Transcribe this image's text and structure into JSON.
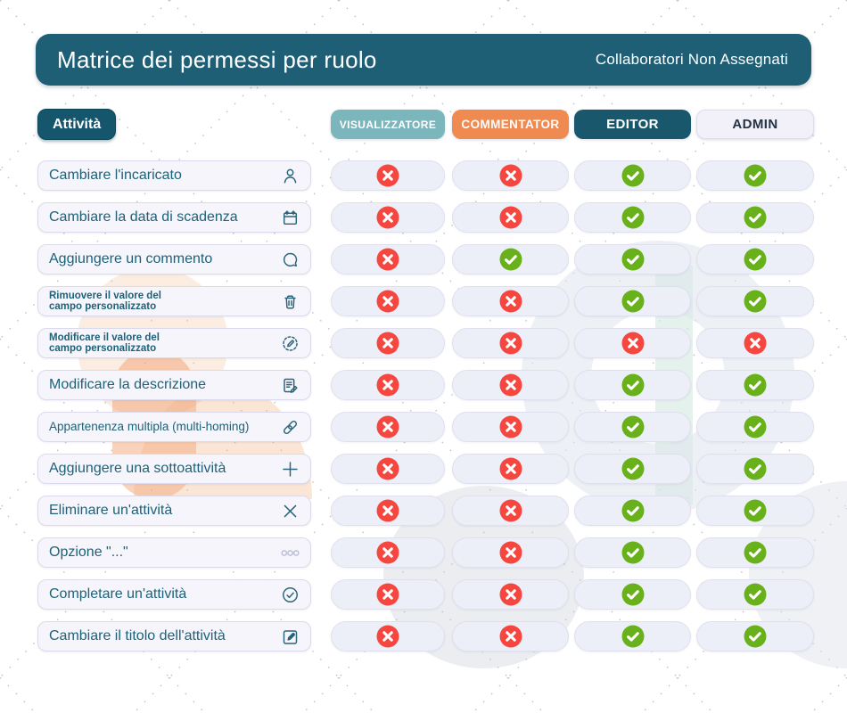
{
  "header": {
    "title": "Matrice dei permessi per ruolo",
    "subtitle": "Collaboratori Non Assegnati"
  },
  "columns": {
    "activity_label": "Attività",
    "roles": [
      {
        "label": "VISUALIZZATORE",
        "bg": "#7ab6bb",
        "fg": "#ffffff",
        "font": 12
      },
      {
        "label": "COMMENTATOR",
        "bg": "#ef8a50",
        "fg": "#ffffff",
        "font": 13.5
      },
      {
        "label": "EDITOR",
        "bg": "#19576d",
        "fg": "#ffffff",
        "font": 15
      },
      {
        "label": "ADMIN",
        "bg": "#f2f1fa",
        "fg": "#253244",
        "font": 15
      }
    ]
  },
  "rows": [
    {
      "label": "Cambiare l'incaricato",
      "icon": "person-icon",
      "size": "lg",
      "perms": [
        "deny",
        "deny",
        "allow",
        "allow"
      ]
    },
    {
      "label": "Cambiare la data di scadenza",
      "icon": "calendar-icon",
      "size": "lg",
      "perms": [
        "deny",
        "deny",
        "allow",
        "allow"
      ]
    },
    {
      "label": "Aggiungere un commento",
      "icon": "comment-icon",
      "size": "lg",
      "perms": [
        "deny",
        "allow",
        "allow",
        "allow"
      ]
    },
    {
      "label": "Rimuovere il valore del\ncampo personalizzato",
      "icon": "trash-icon",
      "size": "sm",
      "perms": [
        "deny",
        "deny",
        "allow",
        "allow"
      ]
    },
    {
      "label": "Modificare il valore del\ncampo personalizzato",
      "icon": "edit-field-icon",
      "size": "sm",
      "perms": [
        "deny",
        "deny",
        "deny",
        "deny"
      ]
    },
    {
      "label": "Modificare la descrizione",
      "icon": "description-icon",
      "size": "lg",
      "perms": [
        "deny",
        "deny",
        "allow",
        "allow"
      ]
    },
    {
      "label": "Appartenenza multipla (multi-homing)",
      "icon": "link-icon",
      "size": "md",
      "perms": [
        "deny",
        "deny",
        "allow",
        "allow"
      ]
    },
    {
      "label": "Aggiungere una sottoattività",
      "icon": "plus-icon",
      "size": "lg",
      "perms": [
        "deny",
        "deny",
        "allow",
        "allow"
      ]
    },
    {
      "label": "Eliminare un'attività",
      "icon": "x-icon",
      "size": "lg",
      "perms": [
        "deny",
        "deny",
        "allow",
        "allow"
      ]
    },
    {
      "label": "Opzione \"...\"",
      "icon": "ellipsis-icon",
      "size": "lg",
      "perms": [
        "deny",
        "deny",
        "allow",
        "allow"
      ]
    },
    {
      "label": "Completare un'attività",
      "icon": "check-circle-icon",
      "size": "lg",
      "perms": [
        "deny",
        "deny",
        "allow",
        "allow"
      ]
    },
    {
      "label": "Cambiare il titolo dell'attività",
      "icon": "edit-square-icon",
      "size": "lg",
      "perms": [
        "deny",
        "deny",
        "allow",
        "allow"
      ]
    }
  ],
  "colors": {
    "header_bg": "#1e5f76",
    "allow": "#69b11b",
    "deny": "#f5473f",
    "label_text": "#1d6278",
    "icon_stroke": "#2a6478"
  }
}
